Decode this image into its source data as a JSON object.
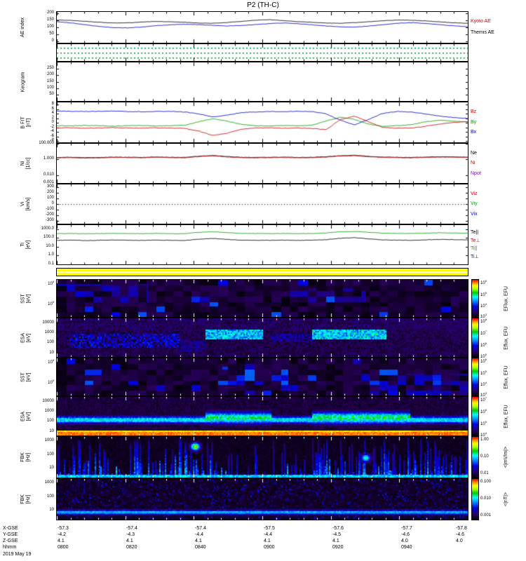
{
  "title": "P2 (TH-C)",
  "footer": {
    "date": "2019 May 19",
    "rows": [
      {
        "label": "X-GSE",
        "values": [
          "-57.3",
          "-57.4",
          "-57.4",
          "-57.5",
          "-57.6",
          "-57.7",
          "-57.8"
        ]
      },
      {
        "label": "Y-GSE",
        "values": [
          "-4.2",
          "-4.3",
          "-4.4",
          "-4.4",
          "-4.5",
          "-4.6",
          "-4.6"
        ]
      },
      {
        "label": "Z-GSE",
        "values": [
          "4.1",
          "4.1",
          "4.1",
          "4.1",
          "4.1",
          "4.0",
          "4.0"
        ]
      },
      {
        "label": "hhmm",
        "values": [
          "0800",
          "0820",
          "0840",
          "0900",
          "0920",
          "0940",
          ""
        ]
      }
    ]
  },
  "chart_data": {
    "type": "multi-panel time series with spectrograms",
    "title": "P2 (TH-C)",
    "x_axis": {
      "start": "0800",
      "end": "1000",
      "date": "2019 May 19",
      "major_ticks": [
        "0800",
        "0820",
        "0840",
        "0900",
        "0920",
        "0940"
      ]
    },
    "palette_stops": [
      {
        "p": 0.0,
        "c": "#000000"
      },
      {
        "p": 0.13,
        "c": "#2a0060"
      },
      {
        "p": 0.3,
        "c": "#0000e0"
      },
      {
        "p": 0.44,
        "c": "#0090ff"
      },
      {
        "p": 0.55,
        "c": "#00ffff"
      },
      {
        "p": 0.66,
        "c": "#00cc00"
      },
      {
        "p": 0.76,
        "c": "#aaff00"
      },
      {
        "p": 0.85,
        "c": "#ffff00"
      },
      {
        "p": 0.93,
        "c": "#ff8800"
      },
      {
        "p": 1.0,
        "c": "#ff0000"
      }
    ],
    "panels": [
      {
        "id": "ae",
        "kind": "line",
        "label": "AE index",
        "unit": "",
        "ylim": [
          -10,
          210
        ],
        "yticks": [
          200,
          150,
          100,
          50,
          0
        ],
        "series": [
          {
            "name": "Kyoto AE",
            "color": "#000000",
            "values": [
              152,
              150,
              143,
              136,
              131,
              132,
              138,
              142,
              140,
              136,
              131,
              129,
              134,
              142,
              151,
              155,
              148,
              141,
              136,
              131,
              129,
              134,
              140,
              147,
              152,
              151,
              146,
              139,
              133,
              129
            ]
          },
          {
            "name": "Themis AE",
            "color": "#0000bb",
            "values": [
              140,
              132,
              119,
              106,
              98,
              96,
              102,
              112,
              118,
              122,
              119,
              114,
              110,
              113,
              120,
              127,
              131,
              126,
              118,
              110,
              104,
              101,
              109,
              119,
              129,
              134,
              128,
              119,
              111,
              104
            ]
          }
        ],
        "legend": [
          {
            "text": "Kyoto AE",
            "color": "#cc0000"
          },
          {
            "text": "Themis AE",
            "color": "#000000"
          }
        ]
      },
      {
        "id": "strip",
        "kind": "dotstrip",
        "dot_color": "#009933",
        "dot_rows": [
          0.22,
          0.5,
          0.78
        ]
      },
      {
        "id": "keogram",
        "kind": "line",
        "label": "Keogram",
        "unit": "",
        "ylim": [
          0,
          300
        ],
        "yticks": [
          250,
          200,
          150,
          100,
          50
        ],
        "series": [],
        "legend": []
      },
      {
        "id": "bfit",
        "kind": "line",
        "label": "B FIT",
        "unit": "[nT]",
        "ylim": [
          -8.5,
          9
        ],
        "yticks": [
          8,
          6,
          4,
          2,
          0,
          -2,
          -4,
          -6,
          -8
        ],
        "series": [
          {
            "name": "Bx",
            "color": "#0000cc",
            "values": [
              5.2,
              5.1,
              5.0,
              5.1,
              5.2,
              5.0,
              4.9,
              5.0,
              5.1,
              4.8,
              4.0,
              2.6,
              3.4,
              4.5,
              4.8,
              5.0,
              4.9,
              5.1,
              5.0,
              4.0,
              1.2,
              -0.8,
              1.5,
              4.2,
              5.0,
              4.8,
              4.0,
              3.0,
              2.4,
              2.0
            ]
          },
          {
            "name": "By",
            "color": "#00a000",
            "values": [
              -1.2,
              -1.3,
              -1.1,
              -1.2,
              -1.4,
              -1.2,
              -1.1,
              -1.3,
              -1.2,
              -1.0,
              0.5,
              1.8,
              0.8,
              -0.6,
              -1.2,
              -1.3,
              -1.1,
              -1.2,
              -1.0,
              0.8,
              2.5,
              1.5,
              -0.5,
              -1.5,
              -1.2,
              -0.8,
              0.5,
              1.2,
              0.8,
              0.4
            ]
          },
          {
            "name": "Bz",
            "color": "#cc0000",
            "values": [
              -2.2,
              -2.1,
              -2.3,
              -2.2,
              -2.0,
              -2.2,
              -2.3,
              -2.1,
              -2.2,
              -2.4,
              -3.5,
              -5.5,
              -4.5,
              -2.8,
              -2.2,
              -2.1,
              -2.3,
              -2.2,
              -2.4,
              -3.0,
              1.5,
              3.0,
              0.5,
              -2.0,
              -2.3,
              -2.2,
              -1.5,
              -0.5,
              0.2,
              0.5
            ]
          }
        ],
        "legend": [
          {
            "text": "Bz",
            "color": "#cc0000"
          },
          {
            "text": "By",
            "color": "#00a000"
          },
          {
            "text": "Bx",
            "color": "#0000cc"
          }
        ]
      },
      {
        "id": "ni",
        "kind": "logline",
        "label": "Ni",
        "unit": "[1/cc]",
        "ylim": [
          0.001,
          100
        ],
        "yticks": [
          "100.000",
          "1.000",
          "0.010",
          "0.001"
        ],
        "series": [
          {
            "name": "Ne",
            "color": "#000000",
            "values": [
              1.8,
              1.9,
              1.7,
              1.8,
              2.0,
              1.9,
              1.8,
              2.1,
              1.9,
              1.8,
              2.6,
              3.2,
              2.4,
              1.9,
              1.8,
              1.9,
              2.0,
              1.8,
              1.9,
              2.2,
              3.0,
              3.4,
              2.5,
              2.0,
              1.9,
              1.8,
              2.0,
              2.2,
              2.1,
              2.0
            ]
          },
          {
            "name": "Ni",
            "color": "#cc0000",
            "values": [
              1.6,
              1.7,
              1.5,
              1.6,
              1.8,
              1.7,
              1.6,
              1.9,
              1.7,
              1.6,
              2.3,
              2.9,
              2.1,
              1.7,
              1.6,
              1.7,
              1.8,
              1.6,
              1.7,
              2.0,
              2.7,
              3.0,
              2.2,
              1.8,
              1.7,
              1.6,
              1.8,
              2.0,
              1.9,
              1.8
            ]
          }
        ],
        "legend": [
          {
            "text": "Ne",
            "color": "#000000"
          },
          {
            "text": "Ni",
            "color": "#cc0000"
          },
          {
            "text": "Npot",
            "color": "#8800cc"
          }
        ]
      },
      {
        "id": "vi",
        "kind": "line",
        "label": "Vi",
        "unit": "[km/s]",
        "ylim": [
          -350,
          350
        ],
        "yticks": [
          300,
          200,
          100,
          0,
          -100,
          -200,
          -300
        ],
        "series": [],
        "zero_line": true,
        "legend": [
          {
            "text": "Viz",
            "color": "#cc0000"
          },
          {
            "text": "Viy",
            "color": "#00a000"
          },
          {
            "text": "Vix",
            "color": "#0000cc"
          }
        ]
      },
      {
        "id": "ti",
        "kind": "logline",
        "label": "Ti",
        "unit": "[eV]",
        "ylim": [
          0.1,
          3000
        ],
        "yticks": [
          "1000.0",
          "100.0",
          "10.0",
          "1.0",
          "0.1"
        ],
        "series": [
          {
            "name": "Ti par",
            "color": "#00a000",
            "values": [
              320,
              330,
              310,
              325,
              340,
              330,
              320,
              335,
              325,
              310,
              450,
              520,
              420,
              340,
              330,
              325,
              330,
              320,
              330,
              380,
              520,
              560,
              450,
              360,
              340,
              330,
              360,
              400,
              380,
              360
            ]
          },
          {
            "name": "Te par",
            "color": "#000000",
            "values": [
              55,
              58,
              52,
              56,
              60,
              57,
              54,
              58,
              56,
              52,
              75,
              90,
              70,
              58,
              55,
              56,
              58,
              54,
              57,
              65,
              95,
              110,
              80,
              62,
              58,
              56,
              62,
              70,
              66,
              62
            ]
          }
        ],
        "legend": [
          {
            "text": "Te||",
            "color": "#000000"
          },
          {
            "text": "Te⊥",
            "color": "#cc0000"
          },
          {
            "text": "Ti||",
            "color": "#00a000"
          },
          {
            "text": "Ti⊥",
            "color": "#0000cc"
          }
        ]
      },
      {
        "id": "roi",
        "kind": "bar",
        "color": "#ffff00"
      },
      {
        "id": "sst_e",
        "kind": "spec",
        "pattern": "sst",
        "label": "SST",
        "unit": "[eV]",
        "seed": 11,
        "yticks": [
          {
            "t": "10^6",
            "f": 0.08
          },
          {
            "t": "10^5",
            "f": 0.62
          }
        ],
        "patches": [
          {
            "x0": 0.0,
            "x1": 0.22,
            "f0": 0.1,
            "f1": 0.6,
            "level": 0.3
          },
          {
            "x0": 0.55,
            "x1": 0.75,
            "f0": 0.2,
            "f1": 0.6,
            "level": 0.25
          }
        ],
        "colorbar": {
          "label": "EFlux, EFU",
          "ticks": [
            {
              "t": "10^6",
              "f": 0.06
            },
            {
              "t": "10^5",
              "f": 0.37
            },
            {
              "t": "10^4",
              "f": 0.68
            },
            {
              "t": "10^3",
              "f": 0.96
            }
          ]
        }
      },
      {
        "id": "esa_e",
        "kind": "spec",
        "pattern": "esa_e",
        "label": "ESA",
        "unit": "[eV]",
        "seed": 23,
        "yticks": [
          {
            "t": "10000",
            "f": 0.12
          },
          {
            "t": "1000",
            "f": 0.38
          },
          {
            "t": "100",
            "f": 0.64
          },
          {
            "t": "10",
            "f": 0.9
          }
        ],
        "patches": [
          {
            "x0": 0.03,
            "x1": 0.3,
            "f0": 0.4,
            "f1": 0.75,
            "level": 0.42,
            "spotty": true
          },
          {
            "x0": 0.3,
            "x1": 0.36,
            "f0": 0.55,
            "f1": 0.85,
            "level": 0.3,
            "spotty": true
          },
          {
            "x0": 0.36,
            "x1": 0.5,
            "f0": 0.28,
            "f1": 0.52,
            "level": 0.6
          },
          {
            "x0": 0.62,
            "x1": 0.8,
            "f0": 0.28,
            "f1": 0.52,
            "level": 0.62
          },
          {
            "x0": 0.52,
            "x1": 0.62,
            "f0": 0.4,
            "f1": 0.6,
            "level": 0.35,
            "spotty": true
          }
        ],
        "colorbar": {
          "label": "Eflux, EFU",
          "ticks": [
            {
              "t": "10^8",
              "f": 0.06
            },
            {
              "t": "10^7",
              "f": 0.37
            },
            {
              "t": "10^6",
              "f": 0.68
            },
            {
              "t": "10^5",
              "f": 0.96
            }
          ]
        }
      },
      {
        "id": "sst_i",
        "kind": "spec",
        "pattern": "sst",
        "label": "SST",
        "unit": "[eV]",
        "seed": 31,
        "yticks": [
          {
            "t": "10^6",
            "f": 0.08
          },
          {
            "t": "10^5",
            "f": 0.62
          }
        ],
        "patches": [
          {
            "x0": 0.4,
            "x1": 0.56,
            "f0": 0.2,
            "f1": 0.7,
            "level": 0.4
          },
          {
            "x0": 0.74,
            "x1": 1.0,
            "f0": 0.4,
            "f1": 1.0,
            "level": 0.28
          }
        ],
        "colorbar": {
          "label": "Eflux, EFU",
          "ticks": [
            {
              "t": "10^6",
              "f": 0.06
            },
            {
              "t": "10^5",
              "f": 0.37
            },
            {
              "t": "10^4",
              "f": 0.68
            },
            {
              "t": "10^3",
              "f": 0.96
            }
          ]
        }
      },
      {
        "id": "esa_i",
        "kind": "spec",
        "pattern": "esa_i",
        "label": "ESA",
        "unit": "[eV]",
        "seed": 37,
        "yticks": [
          {
            "t": "10000",
            "f": 0.12
          },
          {
            "t": "1000",
            "f": 0.38
          },
          {
            "t": "100",
            "f": 0.64
          },
          {
            "t": "10",
            "f": 0.9
          }
        ],
        "band": {
          "f": 0.58,
          "w": 0.1,
          "level": 0.62
        },
        "bottom": {
          "f": 0.9,
          "level": 0.97
        },
        "bursts": [
          {
            "x0": 0.36,
            "x1": 0.52,
            "level": 0.7,
            "w": 0.16
          },
          {
            "x0": 0.62,
            "x1": 0.86,
            "level": 0.72,
            "w": 0.16
          }
        ],
        "colorbar": {
          "label": "Eflux, EFU",
          "ticks": [
            {
              "t": "10^7",
              "f": 0.06
            },
            {
              "t": "10^6",
              "f": 0.37
            },
            {
              "t": "10^5",
              "f": 0.68
            },
            {
              "t": "10^4",
              "f": 0.96
            }
          ]
        }
      },
      {
        "id": "fbk_e",
        "kind": "spec",
        "pattern": "fbk_e",
        "label": "FBK",
        "unit": "[Hz]",
        "seed": 51,
        "yticks": [
          {
            "t": "1000",
            "f": 0.1
          },
          {
            "t": "100",
            "f": 0.44
          },
          {
            "t": "10",
            "f": 0.77
          }
        ],
        "blobs": [
          {
            "x": 0.335,
            "f": 0.22,
            "level": 0.78
          },
          {
            "x": 0.75,
            "f": 0.5,
            "level": 0.6
          }
        ],
        "colorbar": {
          "label": "<|mV/m|>",
          "ticks": [
            {
              "t": "1.00",
              "f": 0.08
            },
            {
              "t": "0.10",
              "f": 0.5
            },
            {
              "t": "0.01",
              "f": 0.92
            }
          ]
        }
      },
      {
        "id": "fbk_b",
        "kind": "spec",
        "pattern": "fbk_b",
        "label": "FBK",
        "unit": "[Hz]",
        "seed": 64,
        "yticks": [
          {
            "t": "1000",
            "f": 0.1
          },
          {
            "t": "100",
            "f": 0.44
          },
          {
            "t": "10",
            "f": 0.77
          }
        ],
        "band": {
          "f": 0.8,
          "w": 0.06,
          "level": 0.55
        },
        "colorbar": {
          "label": "<|nT|>",
          "ticks": [
            {
              "t": "0.100",
              "f": 0.08
            },
            {
              "t": "0.010",
              "f": 0.5
            },
            {
              "t": "0.001",
              "f": 0.92
            }
          ]
        }
      }
    ]
  }
}
